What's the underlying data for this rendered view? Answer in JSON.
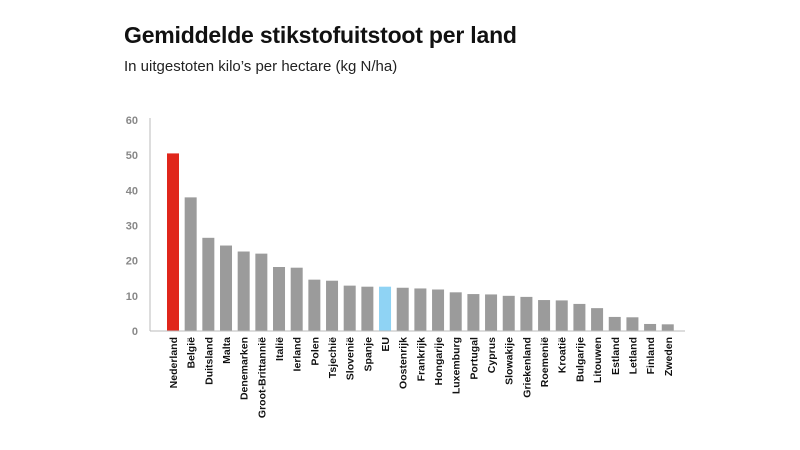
{
  "chart_data": {
    "type": "bar",
    "title": "Gemiddelde stikstofuitstoot per land",
    "subtitle": "In uitgestoten kilo’s per hectare (kg N/ha)",
    "xlabel": "",
    "ylabel": "",
    "ylim": [
      0,
      60
    ],
    "yticks": [
      0,
      10,
      20,
      30,
      40,
      50,
      60
    ],
    "grid": false,
    "categories": [
      "Nederland",
      "België",
      "Duitsland",
      "Malta",
      "Denemarken",
      "Groot-Brittannië",
      "Italië",
      "Ierland",
      "Polen",
      "Tsjechië",
      "Slovenië",
      "Spanje",
      "EU",
      "Oostenrijk",
      "Frankrijk",
      "Hongarije",
      "Luxemburg",
      "Portugal",
      "Cyprus",
      "Slowakije",
      "Griekenland",
      "Roemenië",
      "Kroatië",
      "Bulgarije",
      "Litouwen",
      "Estland",
      "Letland",
      "Finland",
      "Zweden"
    ],
    "values": [
      50.5,
      38,
      26.5,
      24.3,
      22.6,
      22,
      18.2,
      18,
      14.6,
      14.3,
      12.9,
      12.6,
      12.6,
      12.3,
      12.1,
      11.8,
      11,
      10.5,
      10.4,
      10,
      9.7,
      8.8,
      8.7,
      7.7,
      6.5,
      4,
      3.9,
      2,
      1.9
    ],
    "colors": {
      "default": "#9b9b9b",
      "highlight": "#e0261b",
      "eu": "#8fd3f4",
      "axis": "#bbbbbb"
    },
    "highlight_index": 0,
    "eu_index": 12
  }
}
